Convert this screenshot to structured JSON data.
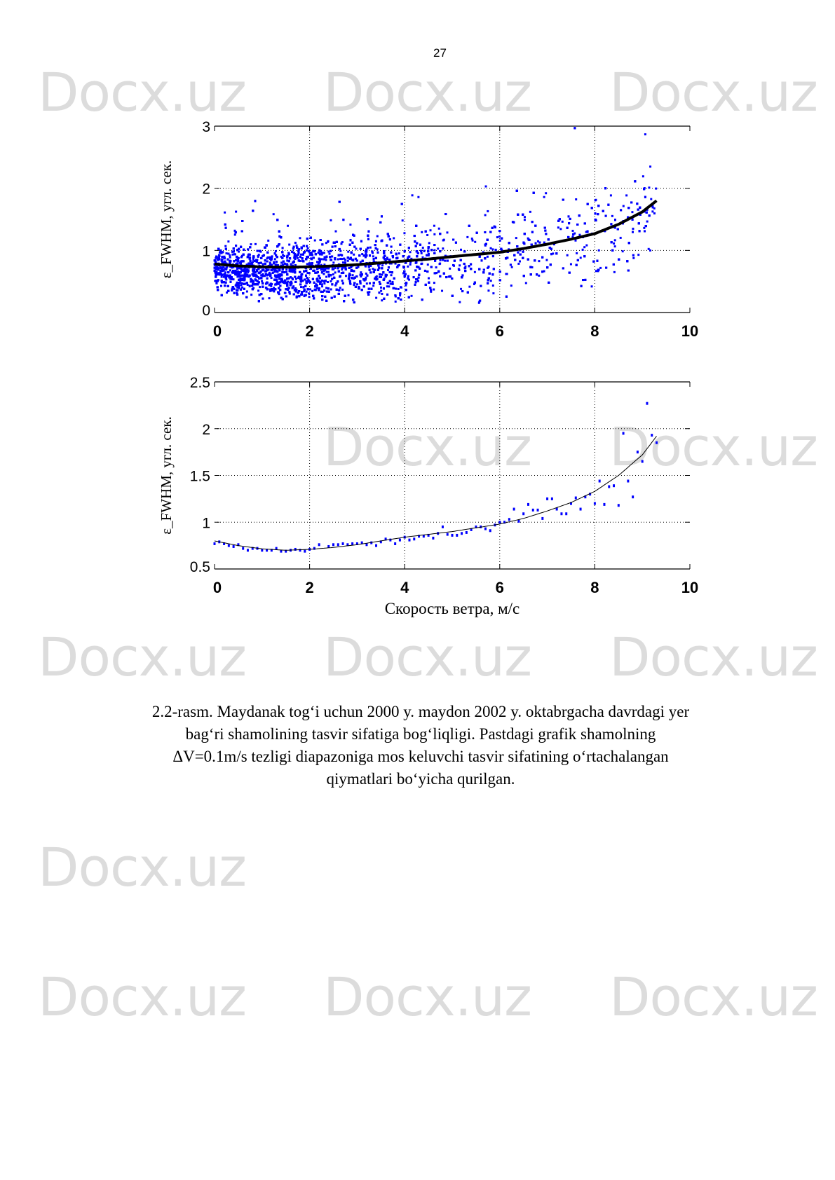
{
  "page_number": "27",
  "watermark": "Docx.uz",
  "caption": [
    "2.2-rasm. Maydanak tog‘i uchun 2000 y. maydon 2002 y. oktabrgacha davrdagi yer",
    "bag‘ri shamolining tasvir sifatiga bog‘liqligi. Pastdagi grafik shamolning",
    "ΔV=0.1m/s tezligi diapazoniga mos keluvchi tasvir sifatining o‘rtachalangan",
    "qiymatlari bo‘yicha qurilgan."
  ],
  "colors": {
    "points": "#0000ff",
    "fit": "#000000",
    "watermark": "#dcdcdc"
  },
  "chart_data": [
    {
      "type": "scatter",
      "ylabel": "ε_FWHM, угл. сек.",
      "xlabel": "",
      "xlim": [
        0,
        10
      ],
      "ylim": [
        0,
        3
      ],
      "xticks": [
        "0",
        "2",
        "4",
        "6",
        "8",
        "10"
      ],
      "yticks": [
        "0",
        "1",
        "2",
        "3"
      ],
      "grid": true,
      "fit_curve": {
        "x": [
          0,
          0.5,
          1,
          1.5,
          2,
          2.5,
          3,
          3.5,
          4,
          4.5,
          5,
          5.5,
          6,
          6.5,
          7,
          7.5,
          8,
          8.5,
          9,
          9.3
        ],
        "y": [
          0.78,
          0.75,
          0.735,
          0.73,
          0.735,
          0.75,
          0.77,
          0.8,
          0.83,
          0.86,
          0.9,
          0.935,
          0.97,
          1.03,
          1.1,
          1.18,
          1.27,
          1.42,
          1.62,
          1.8
        ]
      }
    },
    {
      "type": "scatter",
      "ylabel": "ε_FWHM, угл. сек.",
      "xlabel": "Скорость ветра, м/с",
      "xlim": [
        0,
        10
      ],
      "ylim": [
        0.5,
        2.5
      ],
      "xticks": [
        "0",
        "2",
        "4",
        "6",
        "8",
        "10"
      ],
      "yticks": [
        "0.5",
        "1",
        "1.5",
        "2",
        "2.5"
      ],
      "grid": true,
      "x": [
        0,
        0.1,
        0.2,
        0.3,
        0.4,
        0.5,
        0.6,
        0.7,
        0.8,
        0.9,
        1.0,
        1.1,
        1.2,
        1.3,
        1.4,
        1.5,
        1.6,
        1.7,
        1.8,
        1.9,
        2.0,
        2.1,
        2.2,
        2.4,
        2.5,
        2.6,
        2.7,
        2.8,
        2.9,
        3.0,
        3.1,
        3.2,
        3.3,
        3.4,
        3.5,
        3.6,
        3.7,
        3.8,
        3.9,
        4.0,
        4.1,
        4.2,
        4.3,
        4.4,
        4.5,
        4.6,
        4.7,
        4.8,
        4.9,
        5.0,
        5.1,
        5.2,
        5.3,
        5.4,
        5.5,
        5.6,
        5.7,
        5.8,
        5.9,
        6.0,
        6.1,
        6.2,
        6.3,
        6.4,
        6.5,
        6.6,
        6.7,
        6.8,
        6.9,
        7.0,
        7.1,
        7.2,
        7.3,
        7.4,
        7.5,
        7.6,
        7.7,
        7.8,
        7.9,
        8.0,
        8.1,
        8.2,
        8.3,
        8.4,
        8.5,
        8.6,
        8.7,
        8.8,
        8.9,
        9.0,
        9.1,
        9.2,
        9.3
      ],
      "y": [
        0.77,
        0.79,
        0.77,
        0.75,
        0.74,
        0.76,
        0.72,
        0.7,
        0.72,
        0.72,
        0.7,
        0.7,
        0.7,
        0.72,
        0.69,
        0.69,
        0.7,
        0.71,
        0.7,
        0.69,
        0.71,
        0.72,
        0.76,
        0.74,
        0.76,
        0.76,
        0.77,
        0.76,
        0.77,
        0.77,
        0.78,
        0.76,
        0.78,
        0.75,
        0.79,
        0.82,
        0.81,
        0.77,
        0.81,
        0.84,
        0.81,
        0.82,
        0.85,
        0.85,
        0.86,
        0.83,
        0.88,
        0.95,
        0.87,
        0.86,
        0.86,
        0.88,
        0.89,
        0.92,
        0.95,
        0.95,
        0.93,
        0.91,
        0.97,
        1.0,
        1.0,
        1.03,
        1.14,
        1.01,
        1.09,
        1.19,
        1.13,
        1.13,
        1.04,
        1.25,
        1.25,
        1.14,
        1.09,
        1.09,
        1.2,
        1.26,
        1.14,
        1.27,
        1.3,
        1.2,
        1.44,
        1.19,
        1.38,
        1.39,
        1.18,
        1.95,
        1.44,
        1.27,
        1.75,
        1.65,
        2.27,
        1.93,
        1.85
      ],
      "fit_curve": {
        "x": [
          0,
          0.5,
          1,
          1.5,
          2,
          2.5,
          3,
          3.5,
          4,
          4.5,
          5,
          5.5,
          6,
          6.5,
          7,
          7.5,
          8,
          8.5,
          9,
          9.3
        ],
        "y": [
          0.8,
          0.75,
          0.715,
          0.7,
          0.71,
          0.73,
          0.76,
          0.8,
          0.84,
          0.87,
          0.9,
          0.94,
          0.98,
          1.04,
          1.12,
          1.21,
          1.33,
          1.5,
          1.72,
          1.92
        ]
      }
    }
  ]
}
